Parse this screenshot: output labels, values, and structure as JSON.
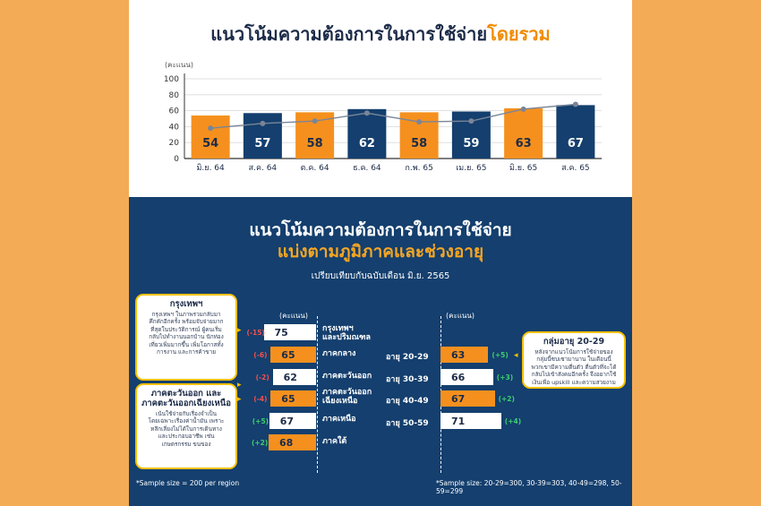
{
  "top_title": {
    "main": "แนวโน้มความต้องการในการใช้จ่าย",
    "highlight": "โดยรวม"
  },
  "colors": {
    "orange": "#f5901e",
    "navy": "#143f6e",
    "line": "#7a8597",
    "green": "#3ecf6e",
    "red": "#f05050"
  },
  "chart_data": [
    {
      "type": "bar",
      "ylabel": "(คะแนน)",
      "ylim": [
        0,
        100
      ],
      "yticks": [
        0,
        20,
        40,
        60,
        80,
        100
      ],
      "categories": [
        "มิ.ย. 64",
        "ส.ค. 64",
        "ต.ค. 64",
        "ธ.ค. 64",
        "ก.พ. 65",
        "เม.ย. 65",
        "มิ.ย. 65",
        "ส.ค. 65"
      ],
      "values": [
        54,
        57,
        58,
        62,
        58,
        59,
        63,
        67
      ],
      "bar_colors": [
        "orange",
        "navy",
        "orange",
        "navy",
        "orange",
        "navy",
        "orange",
        "navy"
      ],
      "line_values": [
        38,
        44,
        47,
        57,
        46,
        47,
        62,
        68
      ]
    },
    {
      "type": "bar",
      "ylabel": "(คะแนน)",
      "categories": [
        "กรุงเทพฯ และปริมณฑล",
        "ภาคกลาง",
        "ภาคตะวันออก",
        "ภาคตะวันออกเฉียงเหนือ",
        "ภาคเหนือ",
        "ภาคใต้"
      ],
      "values": [
        75,
        65,
        62,
        65,
        67,
        68
      ],
      "changes": [
        "(-15)",
        "(-6)",
        "(-2)",
        "(-4)",
        "(+5)",
        "(+2)"
      ],
      "bar_colors": [
        "white",
        "orange",
        "white",
        "orange",
        "white",
        "orange"
      ]
    },
    {
      "type": "bar",
      "ylabel": "(คะแนน)",
      "categories": [
        "อายุ 20-29",
        "อายุ 30-39",
        "อายุ 40-49",
        "อายุ 50-59"
      ],
      "values": [
        63,
        66,
        67,
        71
      ],
      "changes": [
        "(+5)",
        "(+3)",
        "(+2)",
        "(+4)"
      ],
      "bar_colors": [
        "orange",
        "white",
        "orange",
        "white"
      ]
    }
  ],
  "bottom": {
    "title1": "แนวโน้มความต้องการในการใช้จ่าย",
    "title2": "แบ่งตามภูมิภาคและช่วงอายุ",
    "subtitle": "เปรียบเทียบกับฉบับเดือน มิ.ย. 2565",
    "region_labels": [
      "กรุงเทพฯ",
      "และปริมณฑล",
      "ภาคกลาง",
      "ภาคตะวันออก",
      "ภาคตะวันออก",
      "เฉียงเหนือ",
      "ภาคเหนือ",
      "ภาคใต้"
    ],
    "box_bkk": {
      "title": "กรุงเทพฯ",
      "lines": [
        "กรุงเทพฯ ในภาพรวมกลับมา",
        "คึกคักอีกครั้ง พร้อมจับจ่ายมาก",
        "ที่สุดในประวัติการณ์ ผู้คนเริ่ม",
        "กลับไปทำงานนอกบ้าน นักท่อง",
        "เที่ยวเพิ่มมากขึ้น เพิ่มโอกาสทั้ง",
        "การงาน และการค้าขาย"
      ]
    },
    "box_ne": {
      "title": "ภาคตะวันออก และ",
      "title2": "ภาคตะวันออกเฉียงเหนือ",
      "lines": [
        "เน้นใช้จ่ายกับเรื่องจำเป็น",
        "โดยเฉพาะเรื่องค่าน้ำมัน เพราะ",
        "หลีกเลี่ยงไม่ได้ในการเดินทาง",
        "และประกอบอาชีพ เช่น",
        "เกษตรกรรม ขนของ"
      ]
    },
    "box_age": {
      "title": "กลุ่มอายุ 20-29",
      "lines": [
        "หลังจากแนวโน้มการใช้จ่ายของ",
        "กลุ่มนี้ซบเซามานาน ในเดือนนี้",
        "พวกเขามีความตื่นตัว ตื่นตัวที่จะได้",
        "กลับไปเข้าสังคมอีกครั้ง จึงอยากใช้",
        "เงินเพื่อ upskill และความสวยงาม"
      ]
    },
    "note_left": "*Sample size = 200 per region",
    "note_right": "*Sample size: 20-29=300, 30-39=303, 40-49=298, 50-59=299"
  }
}
